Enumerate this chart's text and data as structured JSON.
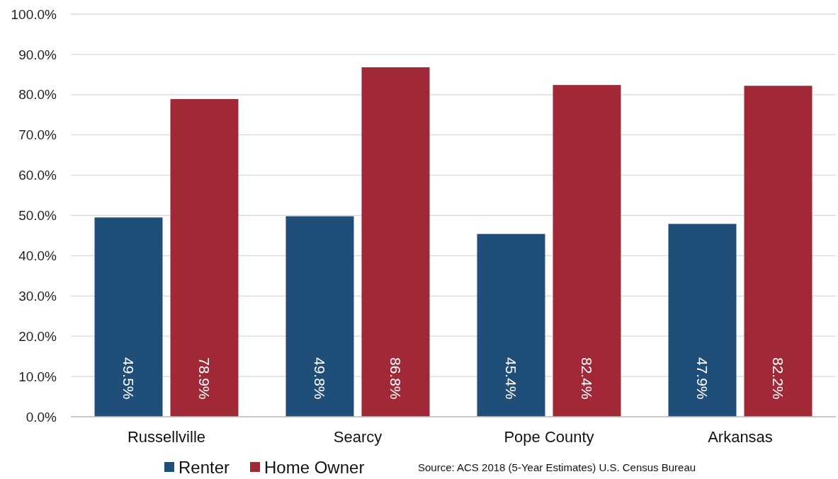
{
  "chart_data": {
    "type": "bar",
    "categories": [
      "Russellville",
      "Searcy",
      "Pope County",
      "Arkansas"
    ],
    "series": [
      {
        "name": "Renter",
        "color": "#1f4e79",
        "values": [
          49.5,
          49.8,
          45.4,
          47.9
        ],
        "value_labels": [
          "49.5%",
          "49.8%",
          "45.4%",
          "47.9%"
        ]
      },
      {
        "name": "Home Owner",
        "color": "#a12836",
        "values": [
          78.9,
          86.8,
          82.4,
          82.2
        ],
        "value_labels": [
          "78.9%",
          "86.8%",
          "82.4%",
          "82.2%"
        ]
      }
    ],
    "ylim": [
      0,
      100
    ],
    "yticks": [
      {
        "value": 0,
        "label": "0.0%"
      },
      {
        "value": 10,
        "label": "10.0%"
      },
      {
        "value": 20,
        "label": "20.0%"
      },
      {
        "value": 30,
        "label": "30.0%"
      },
      {
        "value": 40,
        "label": "40.0%"
      },
      {
        "value": 50,
        "label": "50.0%"
      },
      {
        "value": 60,
        "label": "60.0%"
      },
      {
        "value": 70,
        "label": "70.0%"
      },
      {
        "value": 80,
        "label": "80.0%"
      },
      {
        "value": 90,
        "label": "90.0%"
      },
      {
        "value": 100,
        "label": "100.0%"
      }
    ],
    "grid": "y",
    "legend": "bottom",
    "annotations": [
      "Source: ACS 2018 (5-Year Estimates)  U.S. Census Bureau"
    ]
  }
}
